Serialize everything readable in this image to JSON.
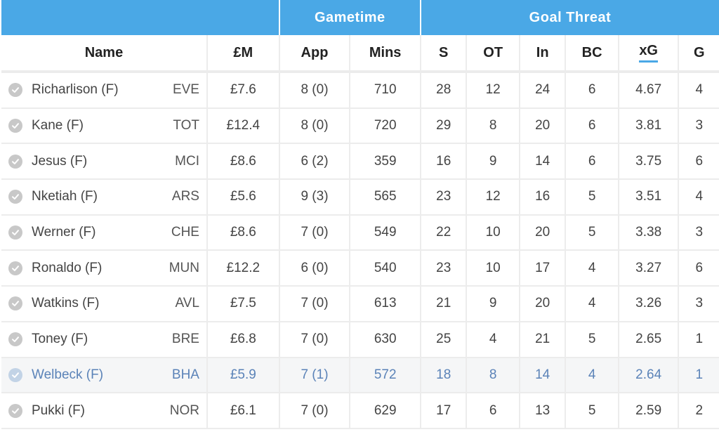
{
  "groups": {
    "gametime": "Gametime",
    "goal_threat": "Goal Threat"
  },
  "columns": {
    "name": "Name",
    "price": "£M",
    "app": "App",
    "mins": "Mins",
    "shots": "S",
    "on_target": "OT",
    "in_box": "In",
    "big_chances": "BC",
    "xg": "xG",
    "goals": "G"
  },
  "sorted_column": "xG",
  "accent_color": "#4aa8e6",
  "highlight_text_color": "#5b83b8",
  "rows": [
    {
      "name": "Richarlison (F)",
      "team": "EVE",
      "price": "£7.6",
      "app": "8 (0)",
      "mins": "710",
      "s": "28",
      "ot": "12",
      "in": "24",
      "bc": "6",
      "xg": "4.67",
      "g": "4"
    },
    {
      "name": "Kane (F)",
      "team": "TOT",
      "price": "£12.4",
      "app": "8 (0)",
      "mins": "720",
      "s": "29",
      "ot": "8",
      "in": "20",
      "bc": "6",
      "xg": "3.81",
      "g": "3"
    },
    {
      "name": "Jesus (F)",
      "team": "MCI",
      "price": "£8.6",
      "app": "6 (2)",
      "mins": "359",
      "s": "16",
      "ot": "9",
      "in": "14",
      "bc": "6",
      "xg": "3.75",
      "g": "6"
    },
    {
      "name": "Nketiah (F)",
      "team": "ARS",
      "price": "£5.6",
      "app": "9 (3)",
      "mins": "565",
      "s": "23",
      "ot": "12",
      "in": "16",
      "bc": "5",
      "xg": "3.51",
      "g": "4"
    },
    {
      "name": "Werner (F)",
      "team": "CHE",
      "price": "£8.6",
      "app": "7 (0)",
      "mins": "549",
      "s": "22",
      "ot": "10",
      "in": "20",
      "bc": "5",
      "xg": "3.38",
      "g": "3"
    },
    {
      "name": "Ronaldo (F)",
      "team": "MUN",
      "price": "£12.2",
      "app": "6 (0)",
      "mins": "540",
      "s": "23",
      "ot": "10",
      "in": "17",
      "bc": "4",
      "xg": "3.27",
      "g": "6"
    },
    {
      "name": "Watkins (F)",
      "team": "AVL",
      "price": "£7.5",
      "app": "7 (0)",
      "mins": "613",
      "s": "21",
      "ot": "9",
      "in": "20",
      "bc": "4",
      "xg": "3.26",
      "g": "3"
    },
    {
      "name": "Toney (F)",
      "team": "BRE",
      "price": "£6.8",
      "app": "7 (0)",
      "mins": "630",
      "s": "25",
      "ot": "4",
      "in": "21",
      "bc": "5",
      "xg": "2.65",
      "g": "1"
    },
    {
      "name": "Welbeck (F)",
      "team": "BHA",
      "price": "£5.9",
      "app": "7 (1)",
      "mins": "572",
      "s": "18",
      "ot": "8",
      "in": "14",
      "bc": "4",
      "xg": "2.64",
      "g": "1",
      "highlighted": true
    },
    {
      "name": "Pukki (F)",
      "team": "NOR",
      "price": "£6.1",
      "app": "7 (0)",
      "mins": "629",
      "s": "17",
      "ot": "6",
      "in": "13",
      "bc": "5",
      "xg": "2.59",
      "g": "2"
    }
  ]
}
